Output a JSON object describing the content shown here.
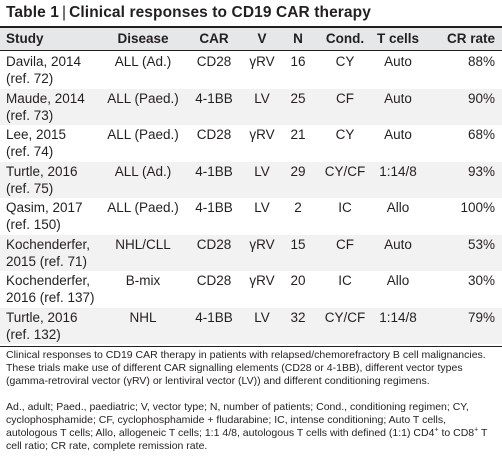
{
  "table": {
    "title_label": "Table 1",
    "title_sep": "|",
    "title_text": "Clinical responses to CD19 CAR therapy",
    "headers": [
      "Study",
      "Disease",
      "CAR",
      "V",
      "N",
      "Cond.",
      "T cells",
      "CR rate"
    ],
    "rows": [
      {
        "study": [
          "Davila, 2014",
          "(ref. 72)"
        ],
        "disease": "ALL (Ad.)",
        "car": "CD28",
        "v": "γRV",
        "n": "16",
        "cond": "CY",
        "tcells": "Auto",
        "cr": "88%"
      },
      {
        "study": [
          "Maude, 2014",
          "(ref. 73)"
        ],
        "disease": "ALL (Paed.)",
        "car": "4-1BB",
        "v": "LV",
        "n": "25",
        "cond": "CF",
        "tcells": "Auto",
        "cr": "90%"
      },
      {
        "study": [
          "Lee, 2015",
          "(ref. 74)"
        ],
        "disease": "ALL (Paed.)",
        "car": "CD28",
        "v": "γRV",
        "n": "21",
        "cond": "CY",
        "tcells": "Auto",
        "cr": "68%"
      },
      {
        "study": [
          "Turtle, 2016",
          "(ref. 75)"
        ],
        "disease": "ALL (Ad.)",
        "car": "4-1BB",
        "v": "LV",
        "n": "29",
        "cond": "CY/CF",
        "tcells": "1:14/8",
        "cr": "93%"
      },
      {
        "study": [
          "Qasim, 2017",
          "(ref. 150)"
        ],
        "disease": "ALL (Paed.)",
        "car": "4-1BB",
        "v": "LV",
        "n": "2",
        "cond": "IC",
        "tcells": "Allo",
        "cr": "100%"
      },
      {
        "study": [
          "Kochenderfer,",
          "2015 (ref. 71)"
        ],
        "disease": "NHL/CLL",
        "car": "CD28",
        "v": "γRV",
        "n": "15",
        "cond": "CF",
        "tcells": "Auto",
        "cr": "53%"
      },
      {
        "study": [
          "Kochenderfer,",
          "2016 (ref. 137)"
        ],
        "disease": "B-mix",
        "car": "CD28",
        "v": "γRV",
        "n": "20",
        "cond": "IC",
        "tcells": "Allo",
        "cr": "30%"
      },
      {
        "study": [
          "Turtle, 2016",
          "(ref. 132)"
        ],
        "disease": "NHL",
        "car": "4-1BB",
        "v": "LV",
        "n": "32",
        "cond": "CY/CF",
        "tcells": "1:14/8",
        "cr": "79%"
      }
    ]
  },
  "footnotes": {
    "p1": "Clinical responses to CD19 CAR therapy in patients with relapsed/chemorefractory B cell malignancies. These trials make use of different CAR signalling elements (CD28 or 4-1BB), different vector types (gamma-retroviral vector (γRV) or lentiviral vector (LV)) and different conditioning regimens.",
    "p2_a": "Ad., adult; Paed., paediatric; V, vector type; N, number of patients; Cond., conditioning regimen; CY, cyclophosphamide; CF, cyclophosphamide + fludarabine; IC, intense conditioning; Auto T cells, autologous T cells; Allo, allogeneic T cells; 1:1 4/8, autologous T cells with defined (1:1) CD4",
    "p2_sup1": "+",
    "p2_b": " to CD8",
    "p2_sup2": "+",
    "p2_c": " T cell ratio; CR rate, complete remission rate."
  }
}
